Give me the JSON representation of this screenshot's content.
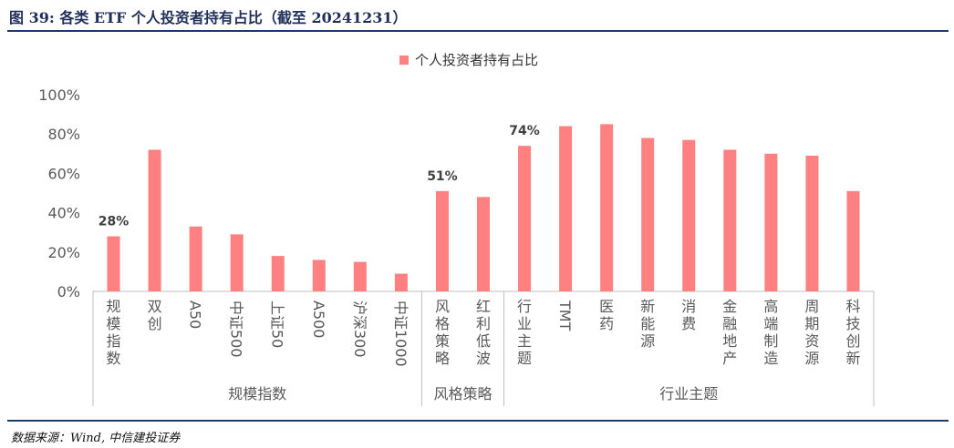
{
  "header": {
    "title": "图 39: 各类 ETF 个人投资者持有占比（截至 20241231）"
  },
  "footer": {
    "source": "数据来源：Wind, 中信建投证券"
  },
  "colors": {
    "bar": "#ff8080",
    "axis": "#bfbfbf",
    "text": "#595959",
    "title_text": "#1f2f5a"
  },
  "chart_data": {
    "type": "bar",
    "legend": {
      "position": "top-center",
      "entries": [
        "个人投资者持有占比"
      ]
    },
    "ylim": [
      0,
      100
    ],
    "yticks": [
      0,
      20,
      40,
      60,
      80,
      100
    ],
    "ytick_labels": [
      "0%",
      "20%",
      "40%",
      "60%",
      "80%",
      "100%"
    ],
    "grid": false,
    "series": [
      {
        "name": "个人投资者持有占比",
        "categories": [
          "规模指数",
          "双创",
          "A50",
          "中证500",
          "上证50",
          "A500",
          "沪深300",
          "中证1000",
          "风格策略",
          "红利低波",
          "行业主题",
          "TMT",
          "医药",
          "新能源",
          "消费",
          "金融地产",
          "高端制造",
          "周期资源",
          "科技创新"
        ],
        "values": [
          28,
          72,
          33,
          29,
          18,
          16,
          15,
          9,
          51,
          48,
          74,
          84,
          85,
          78,
          77,
          72,
          70,
          69,
          51
        ],
        "data_labels": [
          "28%",
          "",
          "",
          "",
          "",
          "",
          "",
          "",
          "51%",
          "",
          "74%",
          "",
          "",
          "",
          "",
          "",
          "",
          "",
          ""
        ]
      }
    ],
    "groups": [
      {
        "label": "规模指数",
        "count": 8
      },
      {
        "label": "风格策略",
        "count": 2
      },
      {
        "label": "行业主题",
        "count": 9
      }
    ]
  }
}
